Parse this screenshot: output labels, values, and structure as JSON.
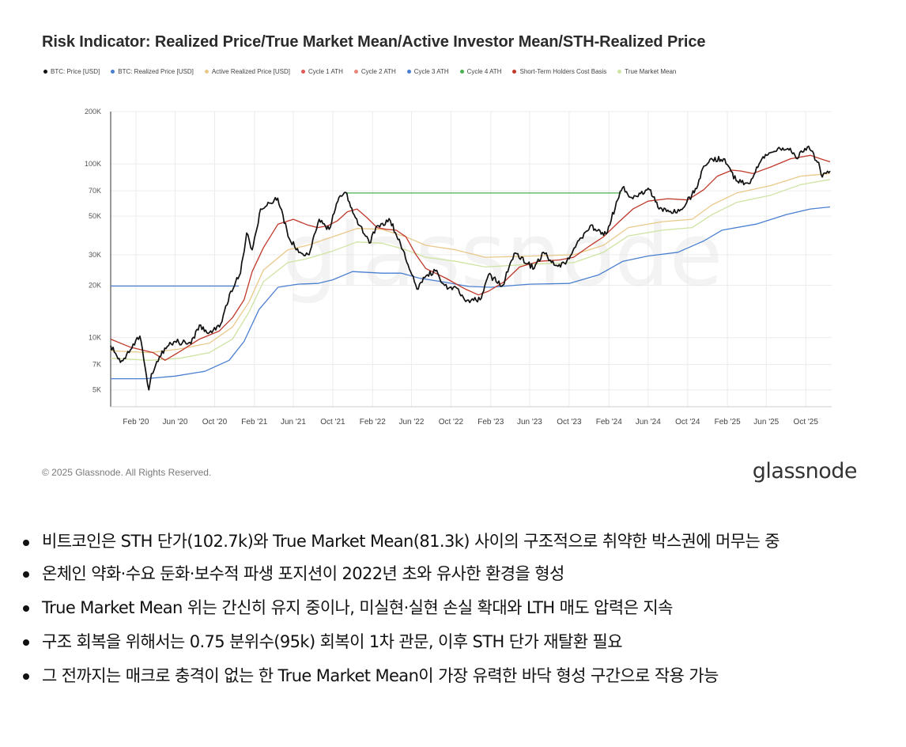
{
  "chart_data": {
    "type": "line",
    "title": "Risk Indicator: Realized Price/True Market Mean/Active Investor Mean/STH-Realized Price",
    "y_scale": "log",
    "ylim": [
      4000,
      200000
    ],
    "y_ticks": [
      {
        "value": 5000,
        "label": "5K"
      },
      {
        "value": 7000,
        "label": "7K"
      },
      {
        "value": 10000,
        "label": "10K"
      },
      {
        "value": 20000,
        "label": "20K"
      },
      {
        "value": 30000,
        "label": "30K"
      },
      {
        "value": 50000,
        "label": "50K"
      },
      {
        "value": 70000,
        "label": "70K"
      },
      {
        "value": 100000,
        "label": "100K"
      },
      {
        "value": 200000,
        "label": "200K"
      }
    ],
    "xlim": [
      "2019-11-15",
      "2025-12-20"
    ],
    "x_ticks": [
      {
        "value": "2020-02-01",
        "label": "Feb '20"
      },
      {
        "value": "2020-06-01",
        "label": "Jun '20"
      },
      {
        "value": "2020-10-01",
        "label": "Oct '20"
      },
      {
        "value": "2021-02-01",
        "label": "Feb '21"
      },
      {
        "value": "2021-06-01",
        "label": "Jun '21"
      },
      {
        "value": "2021-10-01",
        "label": "Oct '21"
      },
      {
        "value": "2022-02-01",
        "label": "Feb '22"
      },
      {
        "value": "2022-06-01",
        "label": "Jun '22"
      },
      {
        "value": "2022-10-01",
        "label": "Oct '22"
      },
      {
        "value": "2023-02-01",
        "label": "Feb '23"
      },
      {
        "value": "2023-06-01",
        "label": "Jun '23"
      },
      {
        "value": "2023-10-01",
        "label": "Oct '23"
      },
      {
        "value": "2024-02-01",
        "label": "Feb '24"
      },
      {
        "value": "2024-06-01",
        "label": "Jun '24"
      },
      {
        "value": "2024-10-01",
        "label": "Oct '24"
      },
      {
        "value": "2025-02-01",
        "label": "Feb '25"
      },
      {
        "value": "2025-06-01",
        "label": "Jun '25"
      },
      {
        "value": "2025-10-01",
        "label": "Oct '25"
      }
    ],
    "grid": true,
    "legend_position": "top",
    "series": [
      {
        "name": "BTC: Price [USD]",
        "color": "#111111",
        "points": [
          [
            "2019-11-15",
            9000
          ],
          [
            "2019-12-15",
            7200
          ],
          [
            "2020-01-15",
            8500
          ],
          [
            "2020-02-13",
            10200
          ],
          [
            "2020-03-12",
            5000
          ],
          [
            "2020-03-20",
            6200
          ],
          [
            "2020-04-30",
            8700
          ],
          [
            "2020-06-01",
            9500
          ],
          [
            "2020-07-20",
            9200
          ],
          [
            "2020-08-15",
            11800
          ],
          [
            "2020-09-15",
            10700
          ],
          [
            "2020-10-20",
            12000
          ],
          [
            "2020-11-20",
            18500
          ],
          [
            "2020-12-20",
            23500
          ],
          [
            "2021-01-08",
            40000
          ],
          [
            "2021-01-25",
            32000
          ],
          [
            "2021-02-20",
            55000
          ],
          [
            "2021-03-15",
            60000
          ],
          [
            "2021-04-14",
            63500
          ],
          [
            "2021-05-20",
            37000
          ],
          [
            "2021-06-22",
            31000
          ],
          [
            "2021-07-20",
            30000
          ],
          [
            "2021-08-20",
            48000
          ],
          [
            "2021-09-20",
            42000
          ],
          [
            "2021-10-20",
            64000
          ],
          [
            "2021-11-10",
            68500
          ],
          [
            "2021-12-10",
            49000
          ],
          [
            "2022-01-22",
            35000
          ],
          [
            "2022-02-15",
            44000
          ],
          [
            "2022-03-28",
            47000
          ],
          [
            "2022-05-10",
            31000
          ],
          [
            "2022-06-18",
            19000
          ],
          [
            "2022-07-20",
            23000
          ],
          [
            "2022-08-14",
            24200
          ],
          [
            "2022-09-20",
            19000
          ],
          [
            "2022-10-20",
            19200
          ],
          [
            "2022-11-12",
            16500
          ],
          [
            "2022-12-30",
            16500
          ],
          [
            "2023-01-25",
            23000
          ],
          [
            "2023-03-10",
            20000
          ],
          [
            "2023-04-14",
            30500
          ],
          [
            "2023-06-15",
            25000
          ],
          [
            "2023-07-14",
            31000
          ],
          [
            "2023-08-20",
            26000
          ],
          [
            "2023-09-20",
            26500
          ],
          [
            "2023-10-24",
            34500
          ],
          [
            "2023-12-05",
            44000
          ],
          [
            "2024-01-23",
            39500
          ],
          [
            "2024-02-28",
            62000
          ],
          [
            "2024-03-14",
            73000
          ],
          [
            "2024-04-15",
            63000
          ],
          [
            "2024-06-05",
            71000
          ],
          [
            "2024-07-05",
            55000
          ],
          [
            "2024-08-05",
            53000
          ],
          [
            "2024-09-06",
            53500
          ],
          [
            "2024-10-29",
            72000
          ],
          [
            "2024-11-20",
            97000
          ],
          [
            "2024-12-17",
            106000
          ],
          [
            "2025-01-20",
            107000
          ],
          [
            "2025-02-28",
            80000
          ],
          [
            "2025-04-08",
            77000
          ],
          [
            "2025-05-22",
            110000
          ],
          [
            "2025-07-14",
            122000
          ],
          [
            "2025-08-14",
            123000
          ],
          [
            "2025-09-01",
            108000
          ],
          [
            "2025-10-06",
            125000
          ],
          [
            "2025-11-10",
            102000
          ],
          [
            "2025-11-21",
            84000
          ],
          [
            "2025-12-15",
            91000
          ]
        ]
      },
      {
        "name": "BTC: Realized Price [USD]",
        "color": "#4a7fd0",
        "points": [
          [
            "2019-11-15",
            5800
          ],
          [
            "2020-03-01",
            5800
          ],
          [
            "2020-06-01",
            6000
          ],
          [
            "2020-09-01",
            6400
          ],
          [
            "2020-11-15",
            7400
          ],
          [
            "2020-12-31",
            9500
          ],
          [
            "2021-02-15",
            14500
          ],
          [
            "2021-04-15",
            19500
          ],
          [
            "2021-06-15",
            20300
          ],
          [
            "2021-08-15",
            20500
          ],
          [
            "2021-10-01",
            21500
          ],
          [
            "2021-12-01",
            24000
          ],
          [
            "2022-03-01",
            23500
          ],
          [
            "2022-05-01",
            23500
          ],
          [
            "2022-06-25",
            22000
          ],
          [
            "2022-09-01",
            21000
          ],
          [
            "2022-11-25",
            19700
          ],
          [
            "2023-02-01",
            19500
          ],
          [
            "2023-06-01",
            20300
          ],
          [
            "2023-10-01",
            20500
          ],
          [
            "2024-01-01",
            23000
          ],
          [
            "2024-03-15",
            27500
          ],
          [
            "2024-06-01",
            29500
          ],
          [
            "2024-09-01",
            31000
          ],
          [
            "2024-11-20",
            36000
          ],
          [
            "2025-01-15",
            41500
          ],
          [
            "2025-05-01",
            45000
          ],
          [
            "2025-08-01",
            51000
          ],
          [
            "2025-10-15",
            55000
          ],
          [
            "2025-12-15",
            56500
          ]
        ]
      },
      {
        "name": "Active Realized Price [USD]",
        "color": "#e9c98a",
        "points": [
          [
            "2019-11-15",
            8400
          ],
          [
            "2020-03-15",
            8200
          ],
          [
            "2020-06-15",
            8600
          ],
          [
            "2020-09-15",
            9300
          ],
          [
            "2020-11-25",
            11500
          ],
          [
            "2021-01-15",
            16000
          ],
          [
            "2021-03-01",
            24500
          ],
          [
            "2021-05-15",
            32000
          ],
          [
            "2021-07-15",
            34000
          ],
          [
            "2021-10-01",
            38000
          ],
          [
            "2021-12-15",
            42500
          ],
          [
            "2022-03-01",
            42000
          ],
          [
            "2022-05-15",
            38000
          ],
          [
            "2022-07-15",
            34000
          ],
          [
            "2022-10-15",
            32000
          ],
          [
            "2023-01-15",
            29000
          ],
          [
            "2023-06-15",
            29500
          ],
          [
            "2023-10-15",
            30000
          ],
          [
            "2024-01-15",
            34000
          ],
          [
            "2024-04-01",
            43000
          ],
          [
            "2024-07-15",
            46500
          ],
          [
            "2024-10-15",
            48000
          ],
          [
            "2024-12-15",
            58000
          ],
          [
            "2025-03-01",
            68000
          ],
          [
            "2025-06-15",
            75000
          ],
          [
            "2025-09-15",
            85000
          ],
          [
            "2025-12-15",
            88000
          ]
        ]
      },
      {
        "name": "Cycle 1 ATH",
        "color": "#e05a5a",
        "points": []
      },
      {
        "name": "Cycle 2 ATH",
        "color": "#e9877a",
        "points": []
      },
      {
        "name": "Cycle 3 ATH",
        "color": "#4a7fd0",
        "points": [
          [
            "2019-11-15",
            19800
          ],
          [
            "2020-12-15",
            19800
          ]
        ]
      },
      {
        "name": "Cycle 4 ATH",
        "color": "#4caf50",
        "points": [
          [
            "2021-11-10",
            68000
          ],
          [
            "2024-03-10",
            68000
          ]
        ]
      },
      {
        "name": "Short-Term Holders Cost Basis",
        "color": "#c0392b",
        "points": [
          [
            "2019-11-15",
            9800
          ],
          [
            "2020-01-15",
            8800
          ],
          [
            "2020-03-25",
            8200
          ],
          [
            "2020-05-01",
            7400
          ],
          [
            "2020-06-15",
            8300
          ],
          [
            "2020-08-15",
            9800
          ],
          [
            "2020-10-15",
            10900
          ],
          [
            "2020-11-25",
            13000
          ],
          [
            "2020-12-31",
            16500
          ],
          [
            "2021-01-25",
            24000
          ],
          [
            "2021-03-01",
            33000
          ],
          [
            "2021-04-15",
            45000
          ],
          [
            "2021-06-01",
            48000
          ],
          [
            "2021-07-15",
            44500
          ],
          [
            "2021-08-15",
            43000
          ],
          [
            "2021-09-15",
            44000
          ],
          [
            "2021-10-15",
            47000
          ],
          [
            "2021-11-15",
            53000
          ],
          [
            "2021-12-15",
            55000
          ],
          [
            "2022-01-15",
            49000
          ],
          [
            "2022-02-15",
            43000
          ],
          [
            "2022-03-15",
            42000
          ],
          [
            "2022-04-15",
            41500
          ],
          [
            "2022-05-15",
            38000
          ],
          [
            "2022-06-15",
            30000
          ],
          [
            "2022-07-15",
            25000
          ],
          [
            "2022-09-15",
            22000
          ],
          [
            "2022-11-15",
            19000
          ],
          [
            "2022-12-25",
            17600
          ],
          [
            "2023-01-25",
            18500
          ],
          [
            "2023-03-15",
            21000
          ],
          [
            "2023-05-01",
            25500
          ],
          [
            "2023-07-01",
            27500
          ],
          [
            "2023-09-01",
            28000
          ],
          [
            "2023-10-15",
            29000
          ],
          [
            "2023-12-01",
            33500
          ],
          [
            "2024-01-15",
            38000
          ],
          [
            "2024-03-01",
            46000
          ],
          [
            "2024-04-15",
            55000
          ],
          [
            "2024-06-01",
            61000
          ],
          [
            "2024-08-01",
            63000
          ],
          [
            "2024-10-01",
            62000
          ],
          [
            "2024-11-20",
            71000
          ],
          [
            "2025-01-01",
            85000
          ],
          [
            "2025-02-15",
            92000
          ],
          [
            "2025-03-15",
            91000
          ],
          [
            "2025-04-20",
            88000
          ],
          [
            "2025-06-15",
            96000
          ],
          [
            "2025-08-15",
            107000
          ],
          [
            "2025-10-15",
            112000
          ],
          [
            "2025-11-15",
            107000
          ],
          [
            "2025-12-15",
            102700
          ]
        ]
      },
      {
        "name": "True Market Mean",
        "color": "#cfe3a3",
        "points": [
          [
            "2019-11-15",
            7600
          ],
          [
            "2020-03-15",
            7400
          ],
          [
            "2020-06-15",
            7600
          ],
          [
            "2020-09-15",
            8200
          ],
          [
            "2020-11-25",
            9800
          ],
          [
            "2021-01-15",
            14000
          ],
          [
            "2021-03-01",
            21000
          ],
          [
            "2021-05-15",
            27000
          ],
          [
            "2021-07-15",
            28500
          ],
          [
            "2021-10-01",
            31500
          ],
          [
            "2021-12-15",
            35500
          ],
          [
            "2022-03-01",
            35000
          ],
          [
            "2022-05-15",
            32000
          ],
          [
            "2022-07-15",
            29000
          ],
          [
            "2022-10-15",
            27500
          ],
          [
            "2023-01-15",
            25500
          ],
          [
            "2023-06-15",
            26500
          ],
          [
            "2023-10-15",
            27000
          ],
          [
            "2024-01-15",
            31000
          ],
          [
            "2024-04-01",
            38500
          ],
          [
            "2024-07-15",
            41500
          ],
          [
            "2024-10-15",
            43000
          ],
          [
            "2024-12-15",
            51000
          ],
          [
            "2025-03-01",
            60000
          ],
          [
            "2025-06-15",
            66000
          ],
          [
            "2025-09-15",
            76000
          ],
          [
            "2025-12-15",
            81300
          ]
        ]
      }
    ]
  },
  "chart": {
    "copyright": "© 2025 Glassnode. All Rights Reserved.",
    "brand": "glassnode",
    "watermark": "glassnode"
  },
  "bullets": [
    "비트코인은 STH 단가(102.7k)와 True Market Mean(81.3k) 사이의 구조적으로 취약한 박스권에 머무는 중",
    "온체인 약화·수요 둔화·보수적 파생 포지션이 2022년 초와 유사한 환경을 형성",
    "True Market Mean 위는 간신히 유지 중이나, 미실현·실현 손실 확대와 LTH 매도 압력은 지속",
    "구조 회복을 위해서는 0.75 분위수(95k) 회복이 1차 관문, 이후 STH 단가 재탈환 필요",
    "그 전까지는 매크로 충격이 없는 한 True Market Mean이 가장 유력한 바닥 형성 구간으로 작용 가능"
  ]
}
